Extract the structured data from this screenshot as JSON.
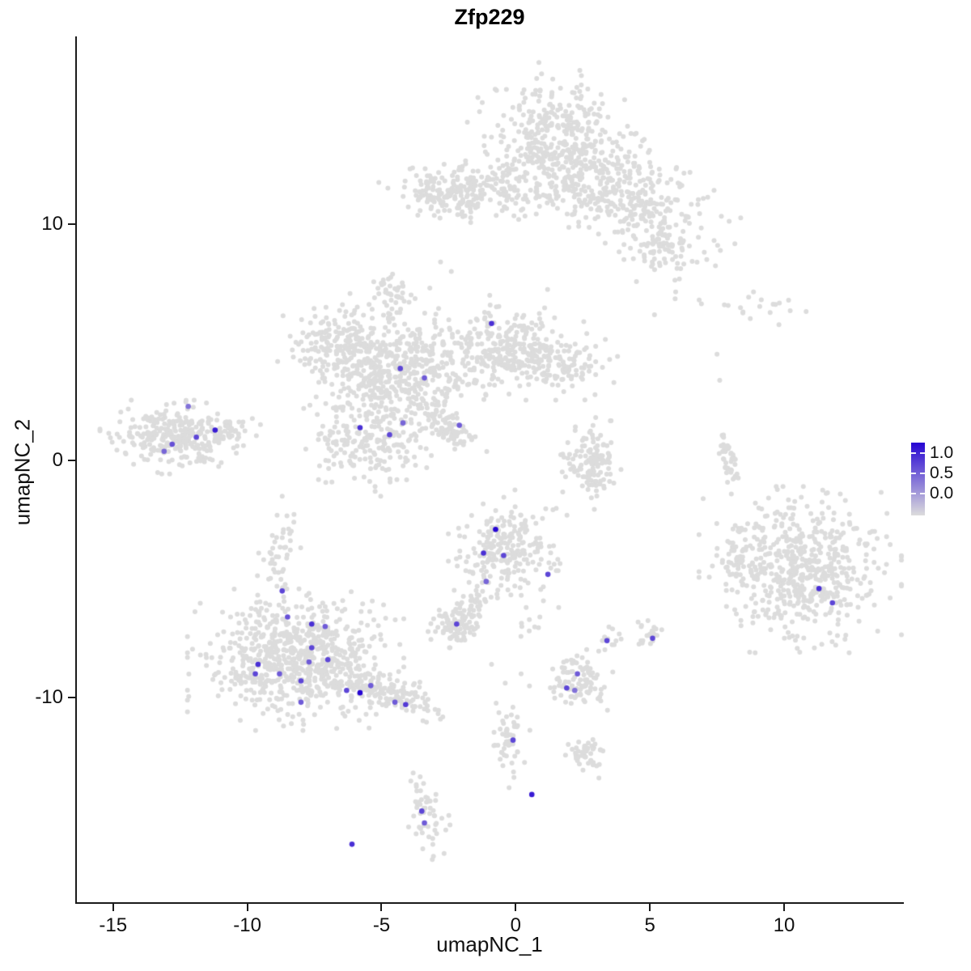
{
  "chart_data": {
    "type": "scatter",
    "title": "Zfp229",
    "xlabel": "umapNC_1",
    "ylabel": "umapNC_2",
    "x_domain": [
      -16.35,
      14.4
    ],
    "y_domain": [
      -18.65,
      17.93
    ],
    "x_ticks": [
      {
        "value": -15,
        "label": "-15"
      },
      {
        "value": -10,
        "label": "-10"
      },
      {
        "value": -5,
        "label": "-5"
      },
      {
        "value": 0,
        "label": "0"
      },
      {
        "value": 5,
        "label": "5"
      },
      {
        "value": 10,
        "label": "10"
      }
    ],
    "y_ticks": [
      {
        "value": 10,
        "label": "10"
      },
      {
        "value": 0,
        "label": "0"
      },
      {
        "value": -10,
        "label": "-10"
      }
    ],
    "colors": {
      "low": "#DCDCDC",
      "high": "#2605D3"
    },
    "legend": {
      "ticks": [
        {
          "value": 1.0,
          "label": "1.0"
        },
        {
          "value": 0.5,
          "label": "0.5"
        },
        {
          "value": 0.0,
          "label": "0.0"
        }
      ]
    },
    "point_clusters": [
      {
        "name": "top-upper",
        "x": 1.5,
        "y": 14.1,
        "sx": 1.15,
        "sy": 1.05,
        "n": 260,
        "rot": 0
      },
      {
        "name": "top-lower",
        "x": 1.9,
        "y": 12.1,
        "sx": 1.6,
        "sy": 0.85,
        "n": 250,
        "rot": 0
      },
      {
        "name": "top-right-lobe",
        "x": 4.5,
        "y": 10.8,
        "sx": 1.5,
        "sy": 0.9,
        "n": 270,
        "rot": -40
      },
      {
        "name": "top-right-tail",
        "x": 5.4,
        "y": 9.0,
        "sx": 0.5,
        "sy": 0.55,
        "n": 50,
        "rot": 0
      },
      {
        "name": "top-left-blob",
        "x": -2.5,
        "y": 11.4,
        "sx": 1.0,
        "sy": 0.55,
        "n": 170,
        "rot": 0
      },
      {
        "name": "top-bridge",
        "x": -0.5,
        "y": 11.4,
        "sx": 0.9,
        "sy": 0.45,
        "n": 60,
        "rot": 0
      },
      {
        "name": "mid-core",
        "x": -4.2,
        "y": 3.8,
        "sx": 1.3,
        "sy": 1.0,
        "n": 380,
        "rot": 0
      },
      {
        "name": "mid-upper-left",
        "x": -6.4,
        "y": 4.9,
        "sx": 0.95,
        "sy": 0.85,
        "n": 210,
        "rot": 0
      },
      {
        "name": "mid-upper-right",
        "x": -0.4,
        "y": 4.9,
        "sx": 1.3,
        "sy": 0.9,
        "n": 280,
        "rot": 0
      },
      {
        "name": "mid-right-arm",
        "x": 1.5,
        "y": 4.0,
        "sx": 0.9,
        "sy": 0.55,
        "n": 120,
        "rot": 0
      },
      {
        "name": "mid-lower-lobe",
        "x": -5.3,
        "y": 1.1,
        "sx": 1.0,
        "sy": 1.0,
        "n": 240,
        "rot": 0
      },
      {
        "name": "mid-streak",
        "x": -2.6,
        "y": 1.5,
        "sx": 0.75,
        "sy": 0.28,
        "n": 85,
        "rot": -45
      },
      {
        "name": "mid-nub",
        "x": -4.6,
        "y": 7.1,
        "sx": 0.35,
        "sy": 0.5,
        "n": 40,
        "rot": 0
      },
      {
        "name": "far-left",
        "x": -12.5,
        "y": 1.0,
        "sx": 1.15,
        "sy": 0.6,
        "n": 290,
        "rot": 0
      },
      {
        "name": "far-left-tail",
        "x": -10.8,
        "y": 1.4,
        "sx": 0.35,
        "sy": 0.3,
        "n": 30,
        "rot": 0
      },
      {
        "name": "center-crescent",
        "x": 2.8,
        "y": -0.1,
        "sx": 0.5,
        "sy": 0.75,
        "n": 130,
        "rot": 0
      },
      {
        "name": "right-main",
        "x": 10.6,
        "y": -4.6,
        "sx": 1.45,
        "sy": 1.35,
        "n": 560,
        "rot": 0
      },
      {
        "name": "right-edge",
        "x": 8.4,
        "y": -3.8,
        "sx": 0.35,
        "sy": 0.7,
        "n": 40,
        "rot": 0
      },
      {
        "name": "right-streak",
        "x": 7.9,
        "y": 0.1,
        "sx": 0.15,
        "sy": 0.65,
        "n": 45,
        "rot": 8
      },
      {
        "name": "topright-sparse",
        "x": 8.6,
        "y": 6.4,
        "sx": 1.5,
        "sy": 0.35,
        "n": 22,
        "rot": 0
      },
      {
        "name": "botleft-main",
        "x": -8.2,
        "y": -8.4,
        "sx": 1.55,
        "sy": 1.15,
        "n": 720,
        "rot": 0
      },
      {
        "name": "botleft-top-tail",
        "x": -8.8,
        "y": -3.9,
        "sx": 0.35,
        "sy": 1.1,
        "n": 50,
        "rot": -8
      },
      {
        "name": "botleft-right-tail",
        "x": -4.7,
        "y": -9.8,
        "sx": 1.0,
        "sy": 0.4,
        "n": 150,
        "rot": -18
      },
      {
        "name": "botmid-main",
        "x": -0.3,
        "y": -3.7,
        "sx": 0.85,
        "sy": 0.95,
        "n": 230,
        "rot": 0
      },
      {
        "name": "botmid-streak",
        "x": -1.65,
        "y": -6.0,
        "sx": 0.9,
        "sy": 0.3,
        "n": 65,
        "rot": 71
      },
      {
        "name": "small-left-blob",
        "x": -2.3,
        "y": -7.0,
        "sx": 0.45,
        "sy": 0.35,
        "n": 70,
        "rot": 0
      },
      {
        "name": "small-right-pair",
        "x": 0.5,
        "y": -7.0,
        "sx": 0.3,
        "sy": 0.4,
        "n": 8,
        "rot": 0
      },
      {
        "name": "bot-cluster",
        "x": 2.4,
        "y": -9.3,
        "sx": 0.55,
        "sy": 0.6,
        "n": 95,
        "rot": 0
      },
      {
        "name": "bot-pts-right",
        "x": 5.0,
        "y": -7.4,
        "sx": 0.25,
        "sy": 0.35,
        "n": 22,
        "rot": 0
      },
      {
        "name": "bot-pts-mid",
        "x": 3.5,
        "y": -7.5,
        "sx": 0.2,
        "sy": 0.25,
        "n": 10,
        "rot": 0
      },
      {
        "name": "bot-streak",
        "x": -0.2,
        "y": -11.6,
        "sx": 0.28,
        "sy": 0.85,
        "n": 55,
        "rot": 0
      },
      {
        "name": "bot-small",
        "x": 2.6,
        "y": -12.4,
        "sx": 0.4,
        "sy": 0.35,
        "n": 45,
        "rot": 0
      },
      {
        "name": "bottom-tiny",
        "x": -3.3,
        "y": -14.9,
        "sx": 0.3,
        "sy": 0.75,
        "n": 55,
        "rot": 10
      }
    ],
    "single_points": [
      [
        -2.8,
        8.4
      ],
      [
        -3.2,
        7.3
      ],
      [
        -2.4,
        8.0
      ],
      [
        7.5,
        4.5
      ],
      [
        7.6,
        3.4
      ],
      [
        0.9,
        -6.6
      ],
      [
        -0.9,
        -8.6
      ],
      [
        0.2,
        -9.0
      ],
      [
        3.1,
        -13.4
      ],
      [
        -8.7,
        -1.5
      ],
      [
        1.6,
        -6.2
      ]
    ],
    "expressing_cells": [
      [
        -8.7,
        -5.5,
        0.7
      ],
      [
        -8.5,
        -6.6,
        0.65
      ],
      [
        -7.6,
        -6.9,
        0.8
      ],
      [
        -7.1,
        -7.0,
        0.6
      ],
      [
        -7.6,
        -7.9,
        0.7
      ],
      [
        -9.6,
        -8.6,
        0.8
      ],
      [
        -9.7,
        -9.0,
        0.7
      ],
      [
        -8.8,
        -9.0,
        0.6
      ],
      [
        -8.0,
        -9.3,
        0.7
      ],
      [
        -7.7,
        -8.5,
        0.6
      ],
      [
        -7.0,
        -8.4,
        0.7
      ],
      [
        -6.3,
        -9.7,
        0.7
      ],
      [
        -5.8,
        -9.8,
        1.0
      ],
      [
        -5.4,
        -9.5,
        0.6
      ],
      [
        -8.0,
        -10.2,
        0.6
      ],
      [
        -4.1,
        -10.3,
        0.75
      ],
      [
        -4.5,
        -10.2,
        0.6
      ],
      [
        -0.75,
        -2.9,
        1.0
      ],
      [
        -1.2,
        -3.9,
        0.8
      ],
      [
        -0.45,
        -4.0,
        0.7
      ],
      [
        1.2,
        -4.8,
        0.7
      ],
      [
        -2.2,
        -6.9,
        0.7
      ],
      [
        -1.1,
        -5.1,
        0.55
      ],
      [
        -0.9,
        5.8,
        0.8
      ],
      [
        -4.3,
        3.9,
        0.7
      ],
      [
        -3.4,
        3.5,
        0.6
      ],
      [
        -5.8,
        1.4,
        0.8
      ],
      [
        -4.7,
        1.1,
        0.7
      ],
      [
        -4.2,
        1.6,
        0.55
      ],
      [
        -2.1,
        1.5,
        0.6
      ],
      [
        -12.2,
        2.3,
        0.5
      ],
      [
        -11.2,
        1.3,
        0.9
      ],
      [
        -11.9,
        1.0,
        0.7
      ],
      [
        -12.8,
        0.7,
        0.65
      ],
      [
        -13.1,
        0.4,
        0.55
      ],
      [
        3.4,
        -7.6,
        0.7
      ],
      [
        5.1,
        -7.5,
        0.7
      ],
      [
        2.3,
        -9.0,
        0.6
      ],
      [
        1.9,
        -9.6,
        0.7
      ],
      [
        2.2,
        -9.7,
        0.5
      ],
      [
        11.3,
        -5.4,
        0.8
      ],
      [
        11.8,
        -6.0,
        0.7
      ],
      [
        -0.1,
        -11.8,
        0.7
      ],
      [
        0.6,
        -14.1,
        0.9
      ],
      [
        -3.5,
        -14.8,
        0.7
      ],
      [
        -3.4,
        -15.3,
        0.6
      ],
      [
        -6.1,
        -16.2,
        0.8
      ]
    ]
  }
}
